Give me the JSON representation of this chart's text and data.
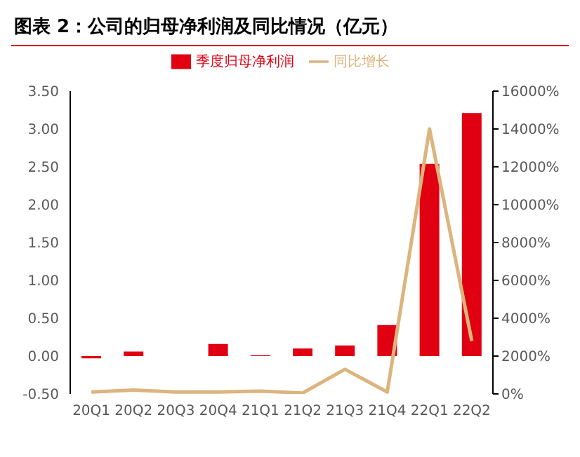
{
  "chart_data": {
    "type": "bar",
    "title": "图表 2：公司的归母净利润及同比情况（亿元）",
    "categories": [
      "20Q1",
      "20Q2",
      "20Q3",
      "20Q4",
      "21Q1",
      "21Q2",
      "21Q3",
      "21Q4",
      "22Q1",
      "22Q2"
    ],
    "series": [
      {
        "name": "季度归母净利润",
        "color": "#e00012",
        "values": [
          -0.03,
          0.06,
          0,
          0.16,
          0.01,
          0.1,
          0.14,
          0.41,
          2.54,
          3.21
        ]
      },
      {
        "name": "同比增长",
        "type": "line",
        "axis": "y2",
        "color": "#dcb47e",
        "values": [
          100,
          200,
          100,
          100,
          150,
          50,
          1300,
          100,
          14000,
          2800
        ]
      }
    ],
    "ylim": [
      -0.5,
      3.5
    ],
    "yticks": [
      {
        "value": -0.5,
        "label": "-0.50"
      },
      {
        "value": 0,
        "label": "0.00"
      },
      {
        "value": 0.5,
        "label": "0.50"
      },
      {
        "value": 1,
        "label": "1.00"
      },
      {
        "value": 1.5,
        "label": "1.50"
      },
      {
        "value": 2,
        "label": "2.00"
      },
      {
        "value": 2.5,
        "label": "2.50"
      },
      {
        "value": 3,
        "label": "3.00"
      },
      {
        "value": 3.5,
        "label": "3.50"
      }
    ],
    "y2lim": [
      0,
      16000
    ],
    "y2ticks": [
      {
        "value": 0,
        "label": "0%"
      },
      {
        "value": 2000,
        "label": "2000%"
      },
      {
        "value": 4000,
        "label": "4000%"
      },
      {
        "value": 6000,
        "label": "6000%"
      },
      {
        "value": 8000,
        "label": "8000%"
      },
      {
        "value": 10000,
        "label": "10000%"
      },
      {
        "value": 12000,
        "label": "12000%"
      },
      {
        "value": 14000,
        "label": "14000%"
      },
      {
        "value": 16000,
        "label": "16000%"
      }
    ],
    "legend": "top",
    "marker": "none",
    "grid": false
  }
}
